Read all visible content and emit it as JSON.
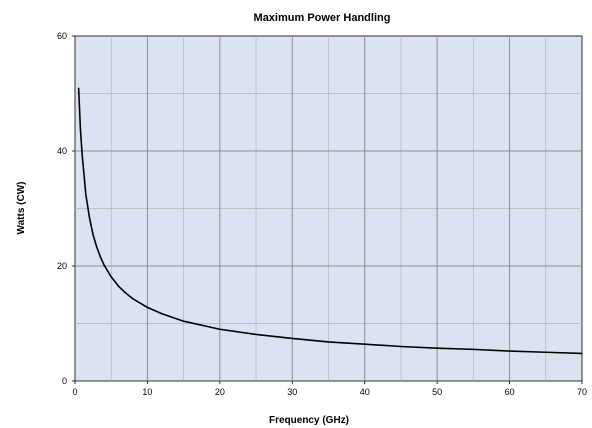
{
  "chart_data": {
    "type": "line",
    "title": "Maximum Power Handling",
    "xlabel": "Frequency (GHz)",
    "ylabel": "Watts (CW)",
    "xlim": [
      0,
      70
    ],
    "ylim": [
      0,
      60
    ],
    "xticks": [
      0,
      10,
      20,
      30,
      40,
      50,
      60,
      70
    ],
    "yticks": [
      0,
      20,
      40,
      60
    ],
    "grid": true,
    "grid_minor": true,
    "colors": {
      "plot_background": "#dbe3f2",
      "grid_major": "#8c8c8c",
      "grid_minor": "#b4b4b4",
      "line": "#000000"
    },
    "series": [
      {
        "x": [
          0.5,
          0.75,
          1,
          1.5,
          2,
          2.5,
          3,
          3.5,
          4,
          5,
          6,
          7,
          8,
          10,
          12,
          15,
          20,
          25,
          30,
          35,
          40,
          45,
          50,
          55,
          60,
          65,
          70
        ],
        "values": [
          51,
          43.7,
          39.2,
          32.4,
          28.4,
          25.4,
          23.3,
          21.6,
          20.2,
          18.1,
          16.5,
          15.3,
          14.3,
          12.8,
          11.7,
          10.4,
          9.0,
          8.1,
          7.4,
          6.8,
          6.4,
          6.0,
          5.7,
          5.5,
          5.2,
          5.0,
          4.8
        ]
      }
    ]
  }
}
